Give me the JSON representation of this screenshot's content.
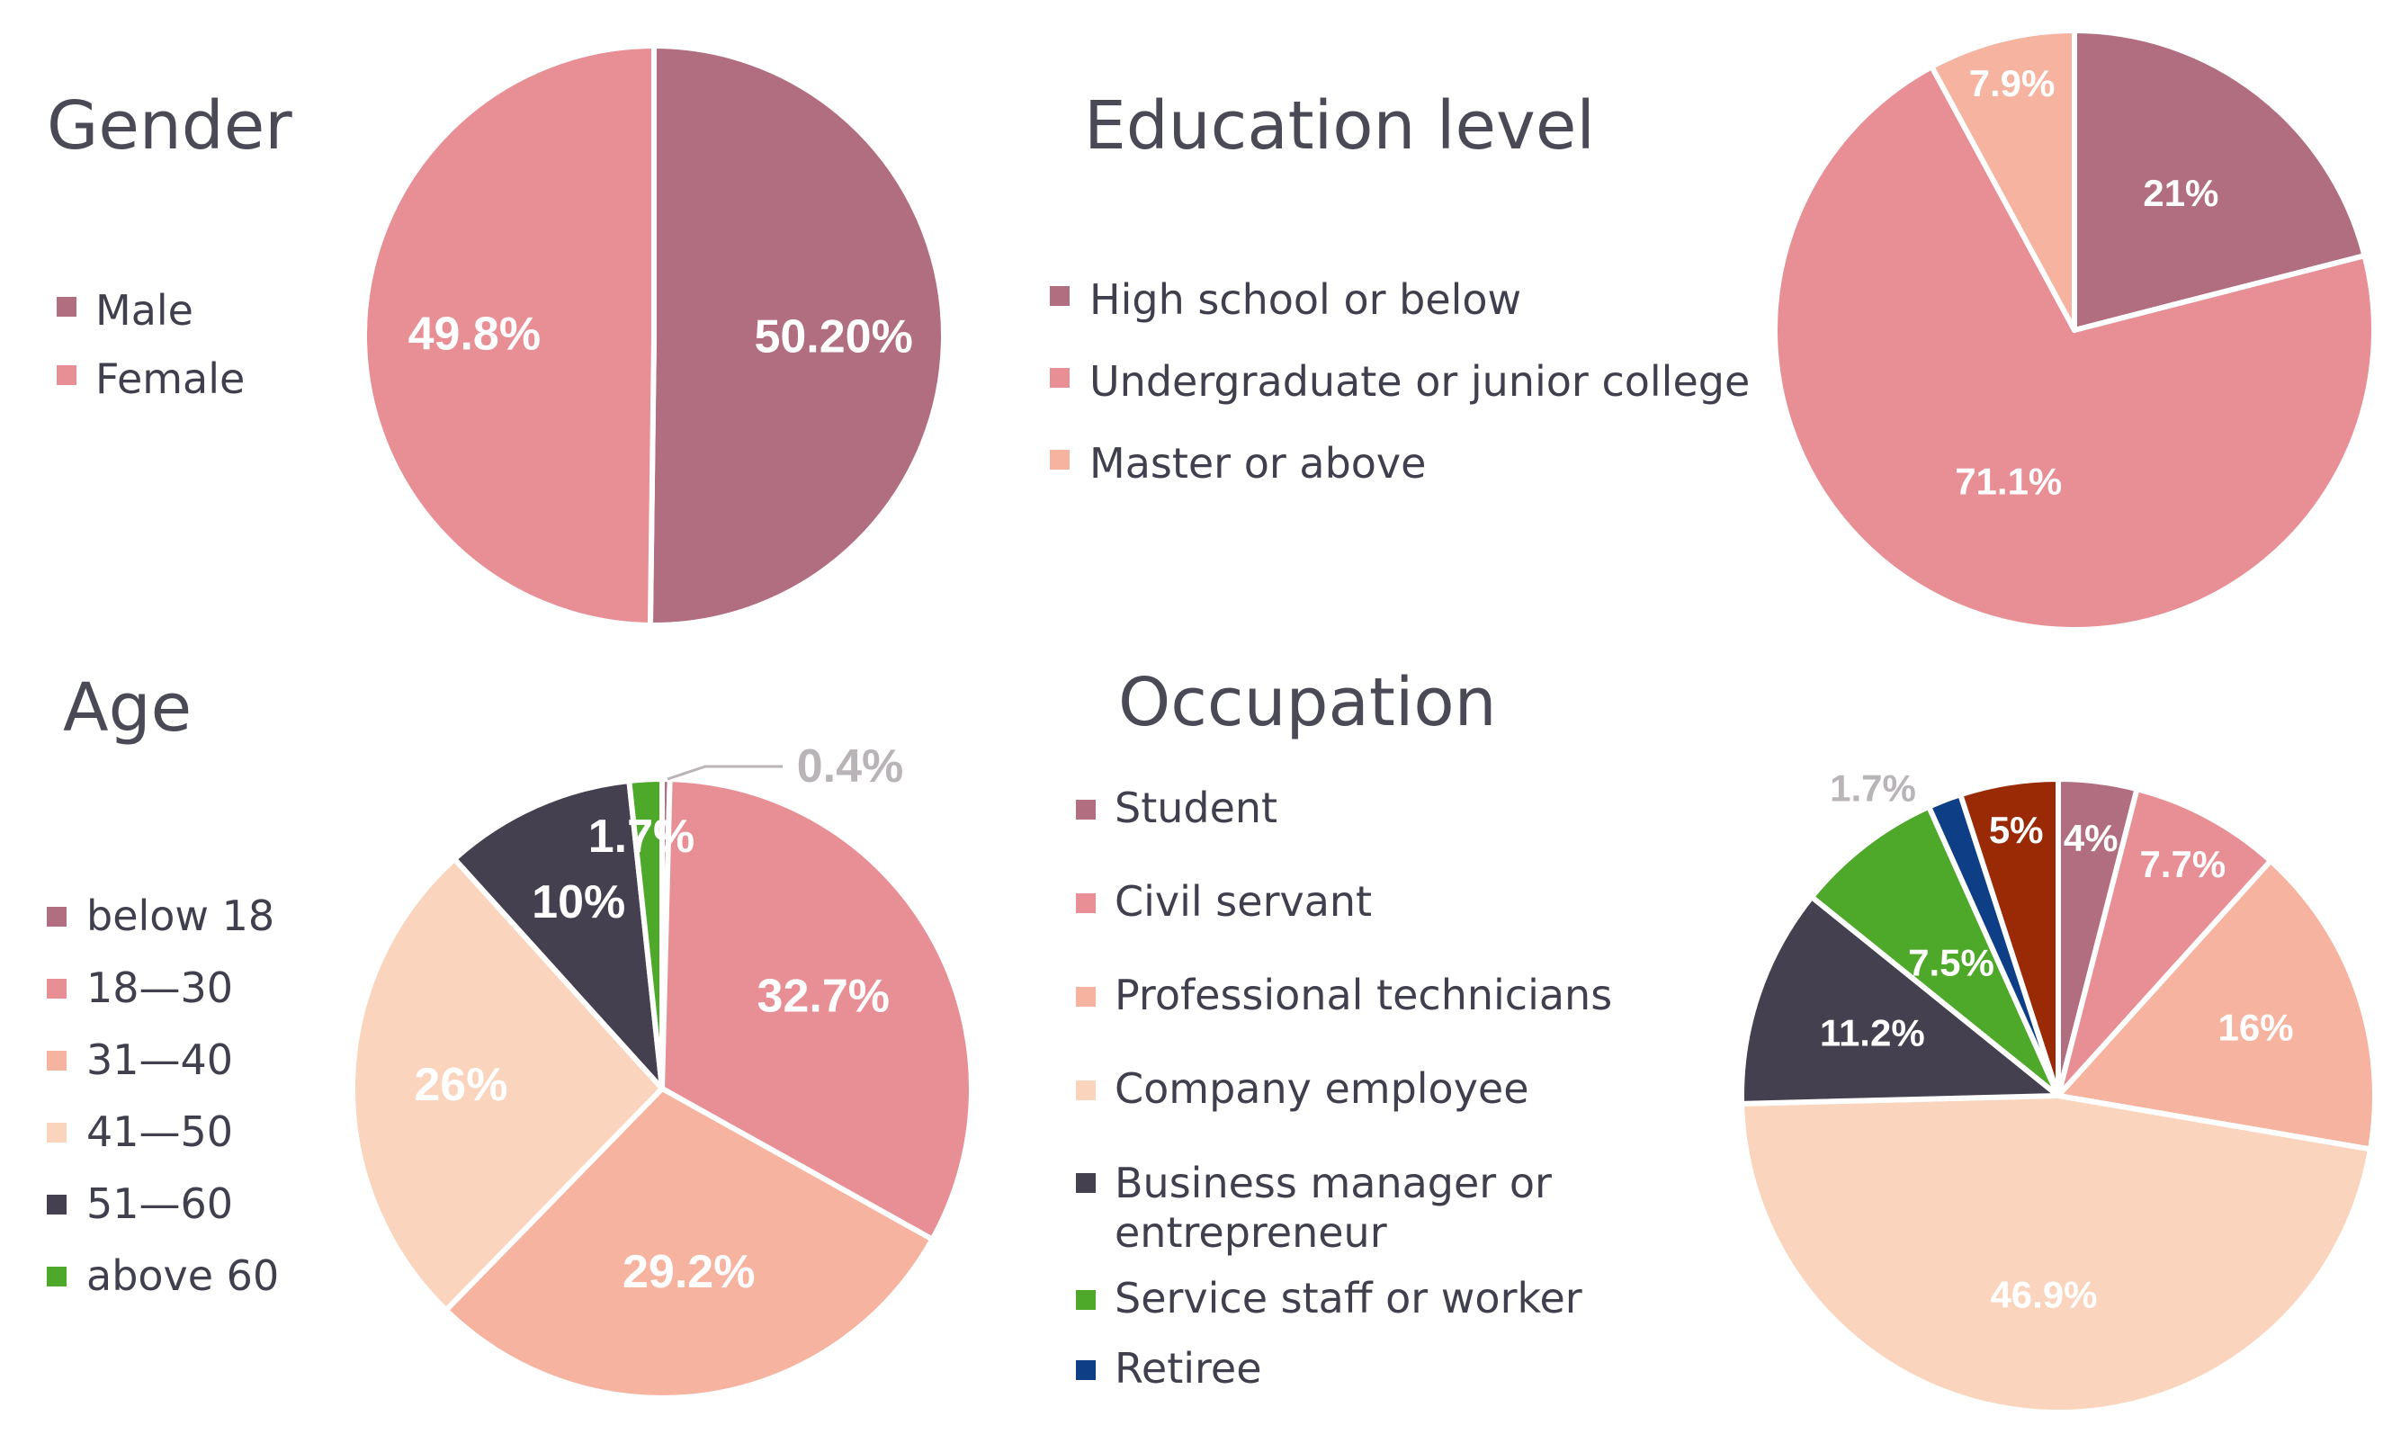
{
  "chart_data": [
    {
      "type": "pie",
      "title": "Gender",
      "legend_position": "left",
      "slices": [
        {
          "name": "Male",
          "value": 50.2,
          "label": "50.20%",
          "color": "#b06e80"
        },
        {
          "name": "Female",
          "value": 49.8,
          "label": "49.8%",
          "color": "#e88e95"
        }
      ]
    },
    {
      "type": "pie",
      "title": "Education level",
      "legend_position": "left",
      "slices": [
        {
          "name": "High school or below",
          "value": 21,
          "label": "21%",
          "color": "#b06e80"
        },
        {
          "name": "Undergraduate or junior college",
          "value": 71.1,
          "label": "71.1%",
          "color": "#e88e95"
        },
        {
          "name": "Master or above",
          "value": 7.9,
          "label": "7.9%",
          "color": "#f6b3a0"
        }
      ]
    },
    {
      "type": "pie",
      "title": "Age",
      "legend_position": "left",
      "slices": [
        {
          "name": "below 18",
          "value": 0.4,
          "label": "0.4%",
          "color": "#b06e80"
        },
        {
          "name": "18—30",
          "value": 32.7,
          "label": "32.7%",
          "color": "#e88e95"
        },
        {
          "name": "31—40",
          "value": 29.2,
          "label": "29.2%",
          "color": "#f6b3a0"
        },
        {
          "name": "41—50",
          "value": 26,
          "label": "26%",
          "color": "#fad4bd"
        },
        {
          "name": "51—60",
          "value": 10,
          "label": "10%",
          "color": "#45404f"
        },
        {
          "name": "above 60",
          "value": 1.7,
          "label": "1.7%",
          "color": "#4ea82a"
        }
      ]
    },
    {
      "type": "pie",
      "title": "Occupation",
      "legend_position": "left",
      "slices": [
        {
          "name": "Student",
          "value": 4,
          "label": "4%",
          "color": "#b06e80"
        },
        {
          "name": "Civil servant",
          "value": 7.7,
          "label": "7.7%",
          "color": "#e88e95"
        },
        {
          "name": "Professional technicians",
          "value": 16,
          "label": "16%",
          "color": "#f6b3a0"
        },
        {
          "name": "Company employee",
          "value": 46.9,
          "label": "46.9%",
          "color": "#fad4bd"
        },
        {
          "name": "Business manager or entrepreneur",
          "value": 11.2,
          "label": "11.2%",
          "color": "#45404f"
        },
        {
          "name": "Service staff or worker",
          "value": 7.5,
          "label": "7.5%",
          "color": "#4ea82a"
        },
        {
          "name": "Retiree",
          "value": 1.7,
          "label": "1.7%",
          "color": "#0e3f86"
        },
        {
          "name": "",
          "value": 5,
          "label": "5%",
          "color": "#9a2a06"
        }
      ]
    }
  ]
}
